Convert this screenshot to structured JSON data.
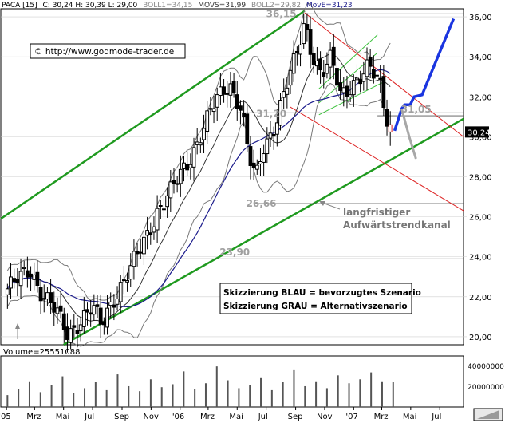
{
  "header": {
    "symbol": "PACA [15]",
    "ohlc": "C: 30,24 H: 30,39 L: 29,00",
    "boll1": "BOLL1=34,15",
    "movs": "MOVS=31,99",
    "boll2": "BOLL2=29,82",
    "move": "MovE=31,23"
  },
  "copyright": "© http://www.godmode-trader.de",
  "colors": {
    "channel": "#1f9a1f",
    "candle_up": "#ffffff",
    "candle_down": "#000000",
    "bollinger": "#7a7a7a",
    "ma_short": "#333333",
    "ma_long": "#1c1c8c",
    "resistance": "#dd2222",
    "scenario_blue": "#1a35e0",
    "scenario_grey": "#a8a8a8",
    "level_label": "#a0a0a0",
    "last_price_bg": "#000000"
  },
  "annotations": {
    "channel_label_1": "langfristiger",
    "channel_label_2": "Aufwärtstrendkanal",
    "legend_blue": "Skizzierung BLAU = bevorzugtes Szenario",
    "legend_grey": "Skizzierung GRAU = Alternativszenario"
  },
  "levels": [
    {
      "label": "36,15",
      "value": 36.15
    },
    {
      "label": "31,05",
      "value": 31.05
    },
    {
      "label": "31,20",
      "value": 31.2
    },
    {
      "label": "26,66",
      "value": 26.66
    },
    {
      "label": "23,90",
      "value": 23.9
    }
  ],
  "last_price_label": "30,24",
  "volume": {
    "label": "Volume=25551088",
    "ticks": [
      "40000000",
      "20000000"
    ]
  },
  "chart_data": {
    "type": "candlestick",
    "title": "PACA [15]",
    "y_ticks": [
      "36,00",
      "34,00",
      "32,00",
      "30,00",
      "28,00",
      "26,00",
      "24,00",
      "22,00",
      "20,00"
    ],
    "ylim": [
      19.6,
      36.4
    ],
    "x_ticks": [
      "'05",
      "Mrz",
      "Mai",
      "Jul",
      "Sep",
      "Nov",
      "'06",
      "Mrz",
      "Mai",
      "Jul",
      "Sep",
      "Nov",
      "'07",
      "Mrz",
      "Mai",
      "Jul"
    ],
    "months": [
      "2005-01",
      "2005-03",
      "2005-05",
      "2005-07",
      "2005-09",
      "2005-11",
      "2006-01",
      "2006-03",
      "2006-05",
      "2006-07",
      "2006-09",
      "2006-11",
      "2007-01",
      "2007-03",
      "2007-05",
      "2007-07"
    ],
    "price_path": [
      [
        "2005-01-03",
        22.4
      ],
      [
        "2005-02-01",
        22.9
      ],
      [
        "2005-02-20",
        23.4
      ],
      [
        "2005-03-15",
        22.3
      ],
      [
        "2005-04-15",
        21.2
      ],
      [
        "2005-05-10",
        20.1
      ],
      [
        "2005-06-01",
        20.8
      ],
      [
        "2005-07-01",
        21.4
      ],
      [
        "2005-07-20",
        20.5
      ],
      [
        "2005-08-10",
        21.8
      ],
      [
        "2005-09-01",
        22.7
      ],
      [
        "2005-09-20",
        23.4
      ],
      [
        "2005-10-15",
        24.6
      ],
      [
        "2005-11-15",
        26.4
      ],
      [
        "2005-12-15",
        27.3
      ],
      [
        "2006-01-15",
        28.6
      ],
      [
        "2006-02-15",
        30.3
      ],
      [
        "2006-03-15",
        31.6
      ],
      [
        "2006-04-15",
        32.7
      ],
      [
        "2006-05-10",
        31.5
      ],
      [
        "2006-05-25",
        29.0
      ],
      [
        "2006-06-10",
        27.8
      ],
      [
        "2006-06-25",
        29.4
      ],
      [
        "2006-07-15",
        30.4
      ],
      [
        "2006-08-10",
        32.4
      ],
      [
        "2006-09-01",
        33.8
      ],
      [
        "2006-09-20",
        35.7
      ],
      [
        "2006-10-05",
        34.3
      ],
      [
        "2006-10-25",
        33.2
      ],
      [
        "2006-11-15",
        33.8
      ],
      [
        "2006-12-05",
        32.0
      ],
      [
        "2007-01-01",
        32.8
      ],
      [
        "2007-02-01",
        33.4
      ],
      [
        "2007-02-25",
        32.6
      ],
      [
        "2007-03-10",
        31.1
      ],
      [
        "2007-03-25",
        30.24
      ]
    ],
    "volume_values": [
      12000000,
      18000000,
      26000000,
      15000000,
      22000000,
      31000000,
      14000000,
      19000000,
      25000000,
      17000000,
      33000000,
      21000000,
      16000000,
      28000000,
      20000000,
      23000000,
      36000000,
      18000000,
      24000000,
      41000000,
      27000000,
      19000000,
      22000000,
      30000000,
      17000000,
      25000000,
      38000000,
      21000000,
      26000000,
      19000000,
      32000000,
      24000000,
      28000000,
      35000000,
      26000000,
      25551088
    ]
  }
}
